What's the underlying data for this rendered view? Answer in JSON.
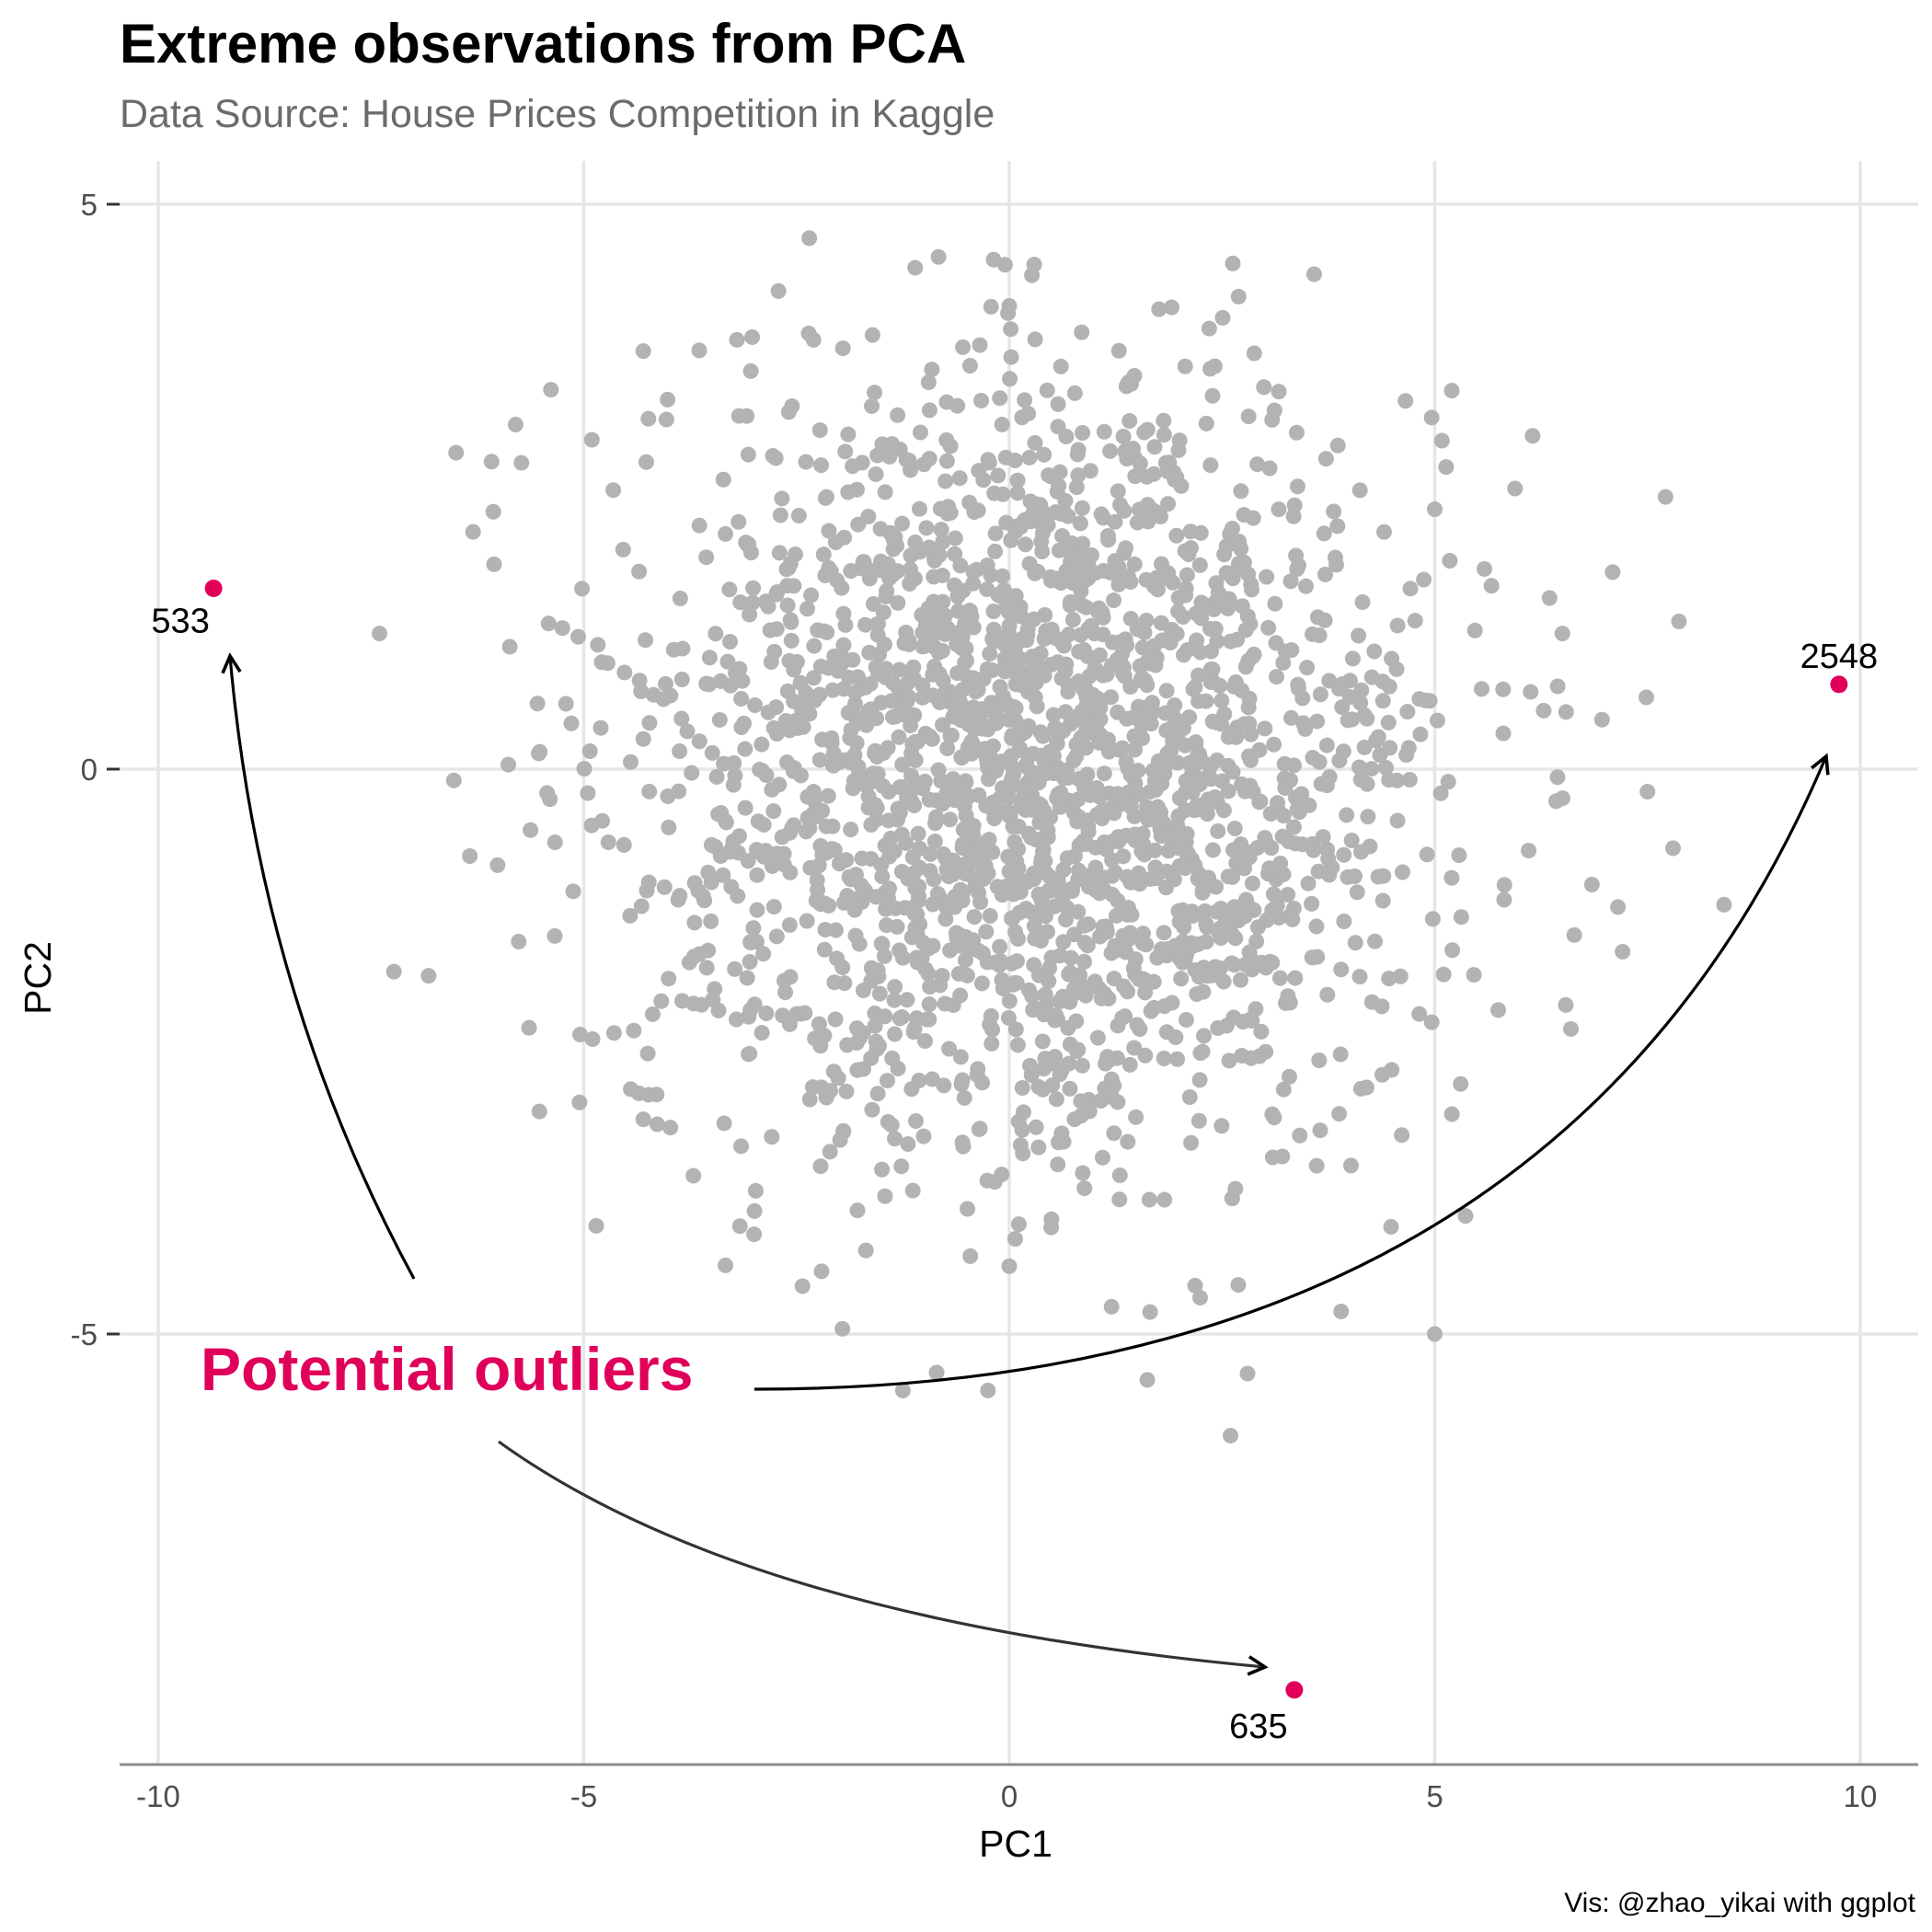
{
  "chart_data": {
    "type": "scatter",
    "title": "Extreme observations from PCA",
    "subtitle": "Data Source: House Prices Competition in Kaggle",
    "xlabel": "PC1",
    "ylabel": "PC2",
    "xlim": [
      -10.5,
      10.8
    ],
    "ylim": [
      -8.8,
      5.6
    ],
    "x_ticks": [
      -10,
      -5,
      0,
      5,
      10
    ],
    "x_tick_labels": [
      "-10",
      "-5",
      "0",
      "5",
      "10"
    ],
    "y_ticks": [
      -5,
      0,
      5
    ],
    "y_tick_labels": [
      "-5",
      "0",
      "5"
    ],
    "grid": true,
    "point_color": "#b3b3b3",
    "highlight_color": "#e0005a",
    "outlier_points": [
      {
        "label": "533",
        "x": -9.35,
        "y": 1.6
      },
      {
        "label": "2548",
        "x": 9.75,
        "y": 0.75
      },
      {
        "label": "635",
        "x": 3.35,
        "y": -8.15
      }
    ],
    "sample_points": [
      {
        "x": -2.35,
        "y": 4.7
      },
      {
        "x": 0.0,
        "y": 4.1
      },
      {
        "x": 2.35,
        "y": 3.9
      },
      {
        "x": -4.3,
        "y": 3.7
      },
      {
        "x": -3.2,
        "y": 3.8
      },
      {
        "x": -2.3,
        "y": 3.8
      },
      {
        "x": -7.4,
        "y": 1.2
      },
      {
        "x": -6.5,
        "y": 2.8
      },
      {
        "x": -5.8,
        "y": 3.05
      },
      {
        "x": -6.3,
        "y": 2.1
      },
      {
        "x": 5.2,
        "y": 3.35
      },
      {
        "x": 6.15,
        "y": 2.95
      },
      {
        "x": 5.0,
        "y": 2.3
      },
      {
        "x": 6.5,
        "y": 1.2
      },
      {
        "x": 7.5,
        "y": -0.2
      },
      {
        "x": 7.8,
        "y": -0.7
      },
      {
        "x": 8.4,
        "y": -1.2
      },
      {
        "x": 6.6,
        "y": -2.3
      },
      {
        "x": 5.0,
        "y": -5.0
      },
      {
        "x": 3.9,
        "y": -4.8
      },
      {
        "x": 2.6,
        "y": -5.9
      },
      {
        "x": 2.8,
        "y": -5.35
      },
      {
        "x": -1.25,
        "y": -5.5
      },
      {
        "x": -0.25,
        "y": -5.5
      },
      {
        "x": 0.0,
        "y": -4.4
      },
      {
        "x": -4.3,
        "y": -3.1
      },
      {
        "x": 1.0,
        "y": 1.2
      },
      {
        "x": -1.2,
        "y": 0.6
      },
      {
        "x": 2.0,
        "y": -0.7
      },
      {
        "x": 0.3,
        "y": -1.5
      },
      {
        "x": -2.3,
        "y": -0.2
      }
    ],
    "annotation_text": "Potential outliers",
    "caption": "Vis: @zhao_yikai with ggplot"
  }
}
